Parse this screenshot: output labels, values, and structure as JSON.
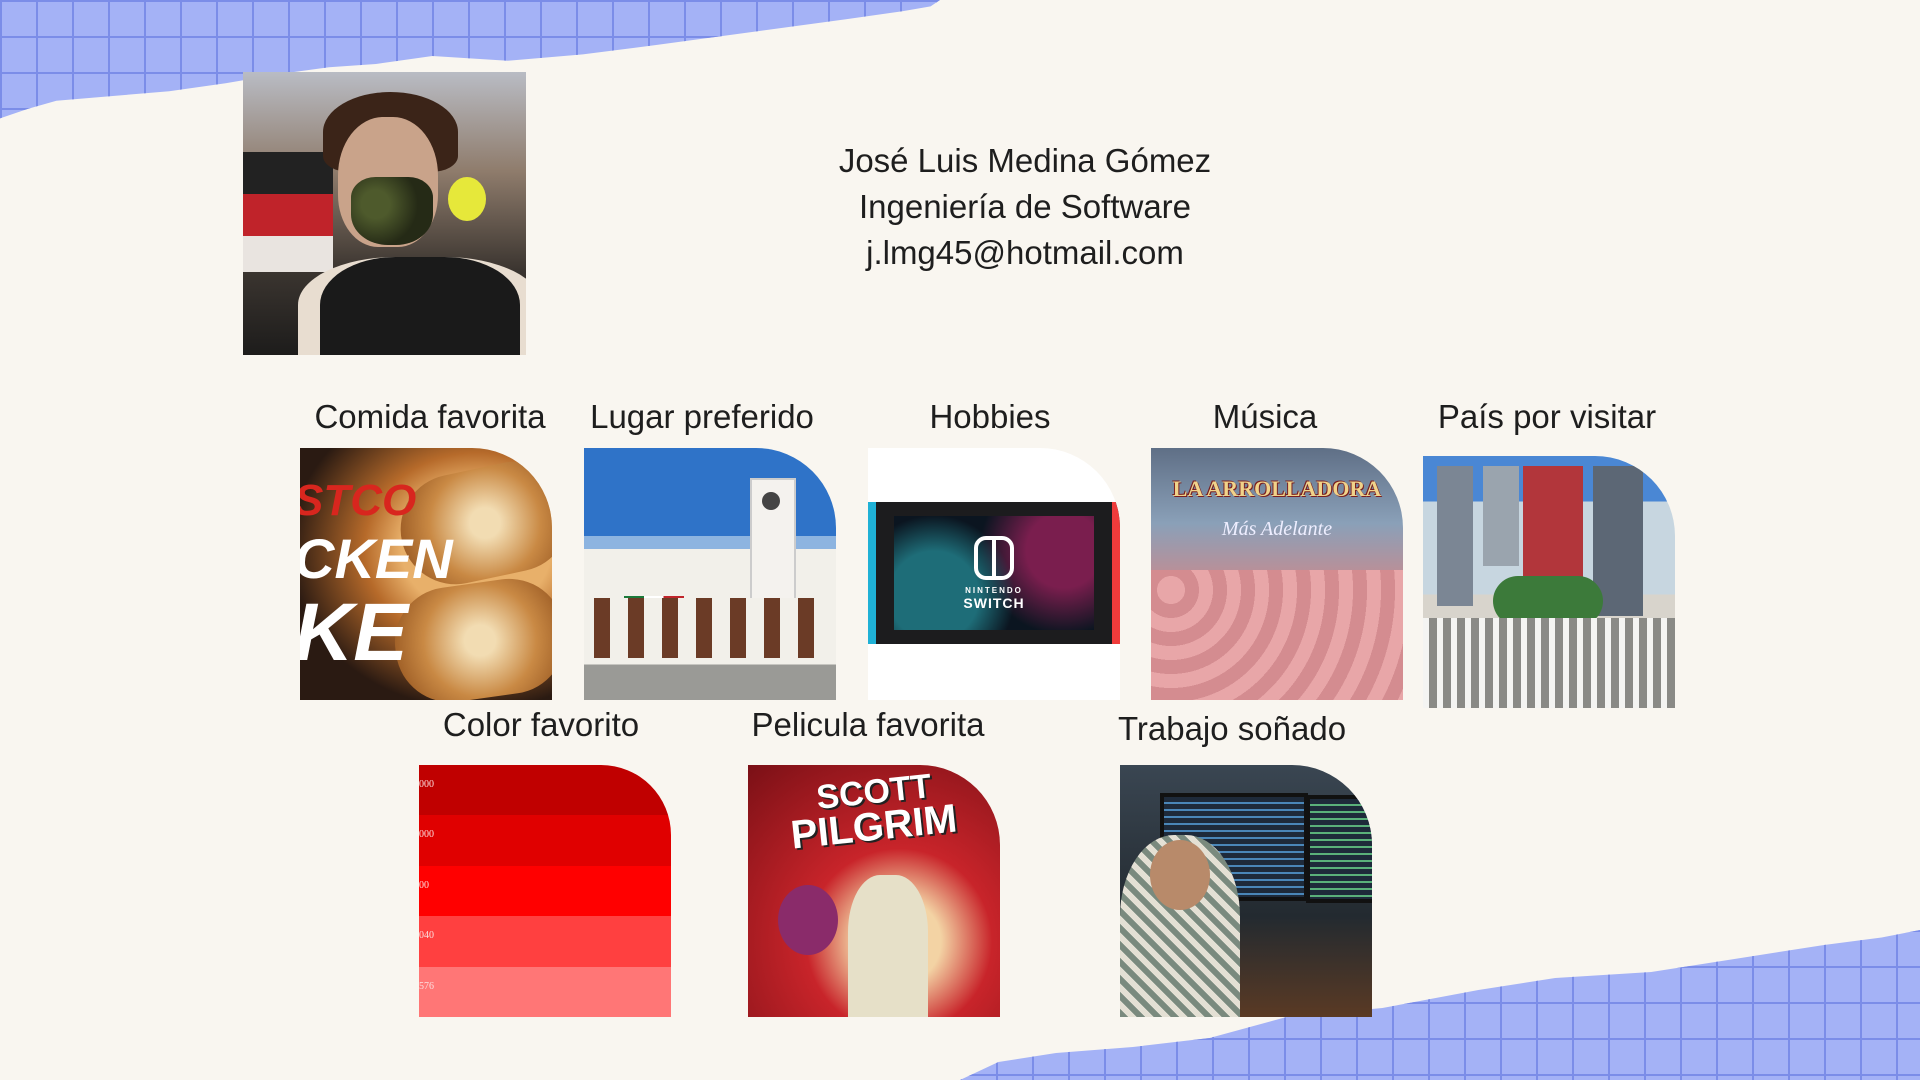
{
  "profile": {
    "name": "José Luis Medina Gómez",
    "career": "Ingeniería de Software",
    "email": "j.lmg45@hotmail.com"
  },
  "cards": {
    "food": {
      "label": "Comida favorita",
      "image_text": [
        "STCO",
        "CKEN",
        "KE"
      ]
    },
    "place": {
      "label": "Lugar preferido"
    },
    "hobbies": {
      "label": "Hobbies",
      "image_text": [
        "NINTENDO",
        "SWITCH"
      ]
    },
    "music": {
      "label": "Música",
      "image_text": [
        "LA ARROLLADORA",
        "Más Adelante"
      ]
    },
    "country": {
      "label": "País por visitar"
    },
    "color": {
      "label": "Color favorito",
      "swatches": [
        {
          "hex": "#c00000",
          "code": "000"
        },
        {
          "hex": "#e00000",
          "code": "000"
        },
        {
          "hex": "#ff0000",
          "code": "00"
        },
        {
          "hex": "#ff4040",
          "code": "040"
        },
        {
          "hex": "#ff7676",
          "code": "576"
        }
      ]
    },
    "movie": {
      "label": "Pelicula favorita",
      "image_text": [
        "SCOTT",
        "PILGRIM"
      ]
    },
    "job": {
      "label": "Trabajo soñado"
    }
  }
}
